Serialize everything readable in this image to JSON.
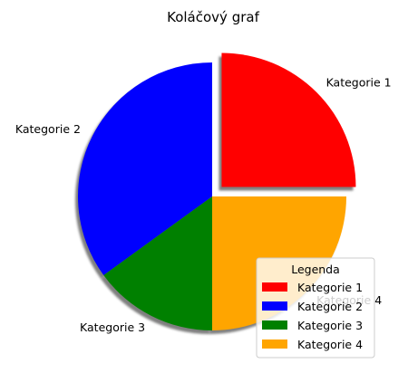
{
  "chart_data": {
    "type": "pie",
    "title": "Koláčový graf",
    "categories": [
      "Kategorie 1",
      "Kategorie 2",
      "Kategorie 3",
      "Kategorie 4"
    ],
    "values": [
      25,
      35,
      15,
      25
    ],
    "colors": [
      "#ff0000",
      "#0000ff",
      "#008000",
      "#ffa500"
    ],
    "explode": [
      0.1,
      0,
      0,
      0
    ],
    "start_angle_deg": 0,
    "direction": "counterclockwise",
    "shadow": true,
    "legend": {
      "title": "Legenda",
      "placement": "lower-right"
    }
  }
}
